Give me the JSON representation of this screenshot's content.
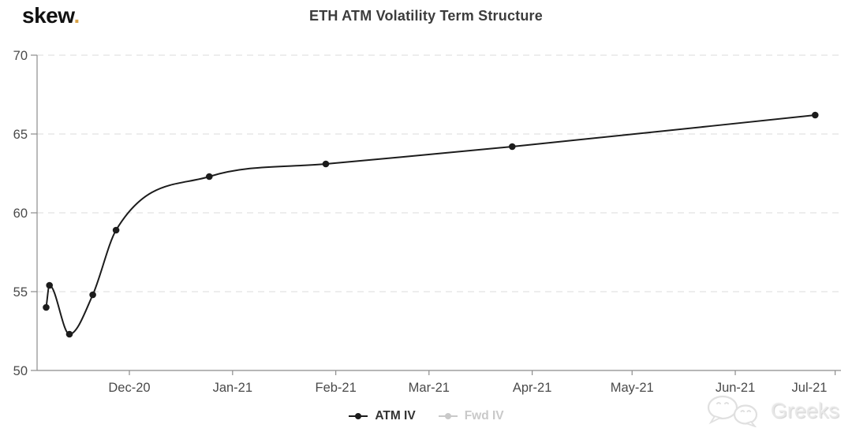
{
  "header": {
    "logo_text": "skew",
    "logo_dot": ".",
    "title": "ETH ATM Volatility Term Structure"
  },
  "legend": {
    "items": [
      {
        "label": "ATM IV",
        "color": "#1c1c1c",
        "text_color": "#333333",
        "active": true
      },
      {
        "label": "Fwd IV",
        "color": "#c9c9c9",
        "text_color": "#c9c9c9",
        "active": false
      }
    ]
  },
  "watermark": {
    "label": "Greeks",
    "icon": "wechat-bubbles-icon"
  },
  "colors": {
    "accent_dot": "#d9a348",
    "series_line": "#1c1c1c",
    "axis": "#8c8c8c",
    "gridline": "#e2e2e2",
    "tick_text": "#4a4a4a",
    "disabled_legend": "#c9c9c9",
    "watermark_text": "#e7e7e7"
  },
  "chart_data": {
    "type": "line",
    "title": "ETH ATM Volatility Term Structure",
    "xlabel": "",
    "ylabel": "",
    "grid": "horizontal-dashed",
    "legend_position": "bottom",
    "y_axis": {
      "range": [
        50,
        70
      ],
      "ticks": [
        50,
        55,
        60,
        65,
        70
      ]
    },
    "x_axis": {
      "type": "time",
      "ticks": [
        {
          "date": "2020-12-01",
          "label": "Dec-20"
        },
        {
          "date": "2021-01-01",
          "label": "Jan-21"
        },
        {
          "date": "2021-02-01",
          "label": "Feb-21"
        },
        {
          "date": "2021-03-01",
          "label": "Mar-21"
        },
        {
          "date": "2021-04-01",
          "label": "Apr-21"
        },
        {
          "date": "2021-05-01",
          "label": "May-21"
        },
        {
          "date": "2021-06-01",
          "label": "Jun-21"
        },
        {
          "date": "2021-07-01",
          "label": "Jul-21"
        }
      ]
    },
    "series": [
      {
        "name": "ATM IV",
        "color": "#1c1c1c",
        "marker": "circle",
        "visible": true,
        "points": [
          {
            "date": "2020-11-06",
            "value": 54.0
          },
          {
            "date": "2020-11-07",
            "value": 55.4
          },
          {
            "date": "2020-11-13",
            "value": 52.3
          },
          {
            "date": "2020-11-20",
            "value": 54.8
          },
          {
            "date": "2020-11-27",
            "value": 58.9
          },
          {
            "date": "2020-12-25",
            "value": 62.3
          },
          {
            "date": "2021-01-29",
            "value": 63.1
          },
          {
            "date": "2021-03-26",
            "value": 64.2
          },
          {
            "date": "2021-06-25",
            "value": 66.2
          }
        ]
      },
      {
        "name": "Fwd IV",
        "color": "#c9c9c9",
        "marker": "circle",
        "visible": false,
        "points": []
      }
    ]
  }
}
